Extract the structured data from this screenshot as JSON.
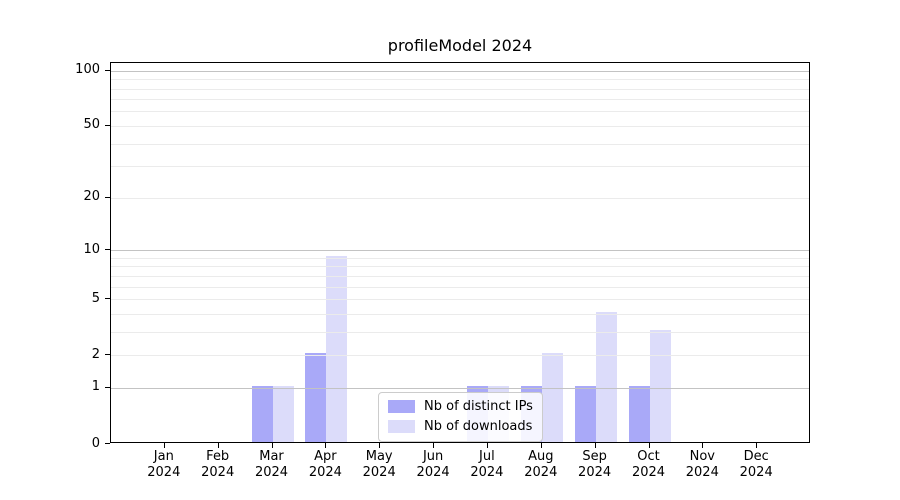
{
  "chart_data": {
    "type": "bar",
    "title": "profileModel 2024",
    "x_labels": [
      {
        "month": "Jan",
        "year": "2024"
      },
      {
        "month": "Feb",
        "year": "2024"
      },
      {
        "month": "Mar",
        "year": "2024"
      },
      {
        "month": "Apr",
        "year": "2024"
      },
      {
        "month": "May",
        "year": "2024"
      },
      {
        "month": "Jun",
        "year": "2024"
      },
      {
        "month": "Jul",
        "year": "2024"
      },
      {
        "month": "Aug",
        "year": "2024"
      },
      {
        "month": "Sep",
        "year": "2024"
      },
      {
        "month": "Oct",
        "year": "2024"
      },
      {
        "month": "Nov",
        "year": "2024"
      },
      {
        "month": "Dec",
        "year": "2024"
      }
    ],
    "series": [
      {
        "name": "Nb of distinct IPs",
        "color": "#a9a9f8",
        "values": [
          0,
          0,
          1,
          2,
          0,
          0,
          1,
          1,
          1,
          1,
          0,
          0
        ]
      },
      {
        "name": "Nb of downloads",
        "color": "#dcdcfa",
        "values": [
          0,
          0,
          1,
          9,
          0,
          0,
          1,
          2,
          4,
          3,
          0,
          0
        ]
      }
    ],
    "y_scale": "log10(1+y)",
    "ylim": [
      0,
      110
    ],
    "y_ticks": [
      0,
      1,
      2,
      5,
      10,
      20,
      50,
      100
    ],
    "grid_major": [
      1,
      10,
      100
    ],
    "grid_minor": [
      2,
      3,
      4,
      5,
      6,
      7,
      8,
      9,
      20,
      30,
      40,
      50,
      60,
      70,
      80,
      90
    ],
    "legend_position": "lower center",
    "colors": {
      "major_grid": "#c3c3c3",
      "minor_grid": "#ebebeb",
      "spine": "#000000",
      "text": "#000000",
      "background": "#ffffff"
    }
  }
}
